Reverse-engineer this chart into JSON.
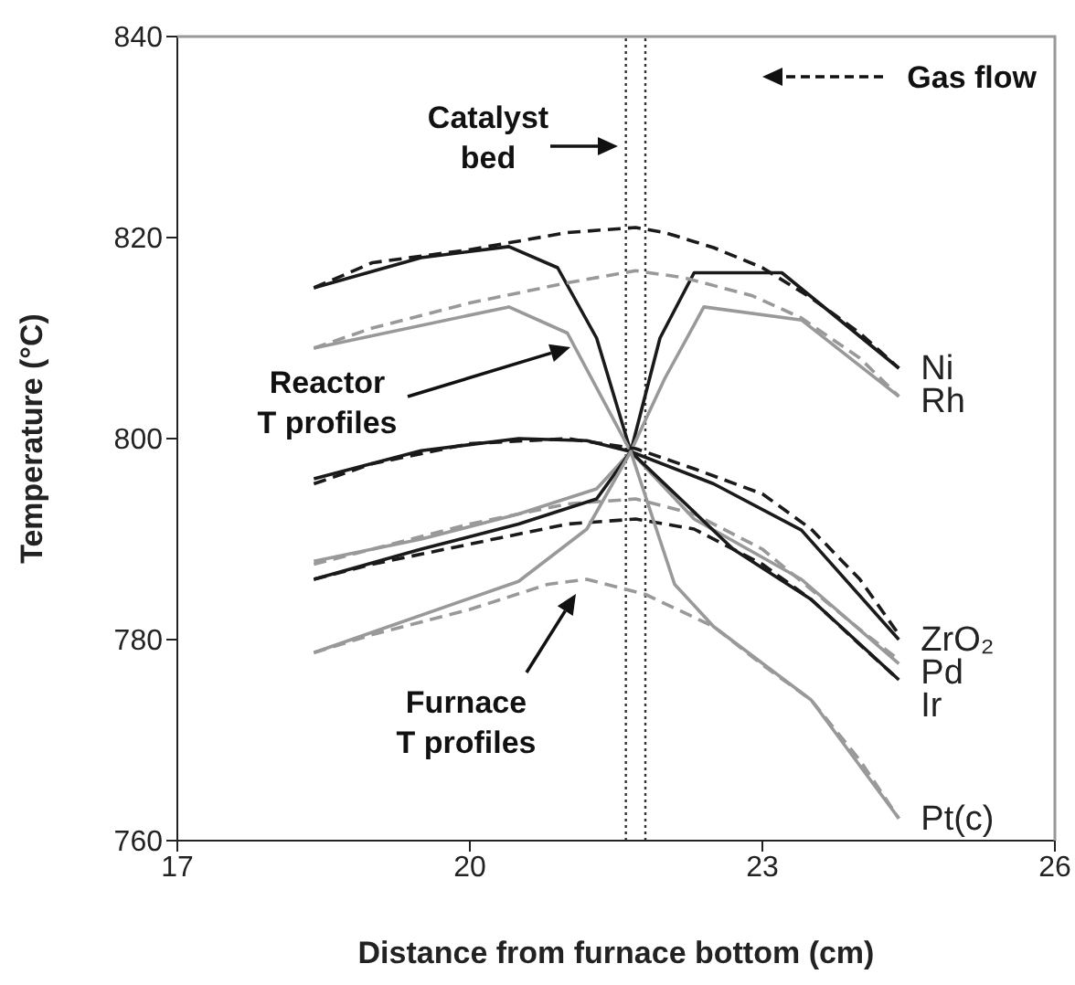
{
  "chart_data": {
    "type": "line",
    "xlabel": "Distance from furnace bottom (cm)",
    "ylabel": "Temperature (°C)",
    "xlim": [
      17,
      26
    ],
    "xticks": [
      17,
      20,
      23,
      26
    ],
    "ylim": [
      760,
      840
    ],
    "yticks": [
      760,
      780,
      800,
      820,
      840
    ],
    "series": [
      {
        "name": "Ni",
        "color": "#1a1a1a",
        "line_style": "solid",
        "x": [
          18.4,
          19.5,
          20.4,
          20.9,
          21.3,
          21.65,
          21.95,
          22.3,
          23.2,
          24.4
        ],
        "values": [
          815,
          818,
          819.1,
          817,
          810,
          798.7,
          810,
          816.5,
          816.5,
          807
        ]
      },
      {
        "color": "#1a1a1a",
        "line_style": "dashed",
        "x": [
          18.4,
          19,
          20,
          21,
          21.7,
          22,
          22.5,
          23,
          23.5,
          24,
          24.4
        ],
        "values": [
          815,
          817.5,
          818.8,
          820.5,
          821,
          820.5,
          819,
          817,
          814,
          810.5,
          807
        ]
      },
      {
        "name": "Rh",
        "color": "#999999",
        "line_style": "solid",
        "x": [
          18.4,
          20.4,
          21.0,
          21.65,
          22.0,
          22.4,
          23.4,
          24.4
        ],
        "values": [
          809,
          813.1,
          810.5,
          798.7,
          806,
          813.1,
          811.8,
          804.2
        ]
      },
      {
        "color": "#999999",
        "line_style": "dashed",
        "x": [
          18.4,
          19,
          20,
          21,
          21.7,
          22.2,
          22.9,
          23.4,
          24,
          24.4
        ],
        "values": [
          809,
          811,
          813.5,
          815.5,
          816.7,
          816,
          814.2,
          812,
          808,
          804.2
        ]
      },
      {
        "name": "ZrO₂",
        "color": "#1a1a1a",
        "line_style": "solid",
        "x": [
          18.4,
          19.5,
          20.5,
          21.2,
          21.65,
          22.5,
          23.4,
          24.4
        ],
        "values": [
          796,
          798.8,
          800,
          799.8,
          798.7,
          795.5,
          790.9,
          780
        ]
      },
      {
        "color": "#1a1a1a",
        "line_style": "dashed",
        "x": [
          18.4,
          19,
          20,
          21,
          21.7,
          22.3,
          23,
          23.5,
          24,
          24.4
        ],
        "values": [
          795.5,
          797.5,
          799.5,
          800,
          799,
          797,
          794.5,
          791,
          786,
          780.5
        ]
      },
      {
        "name": "Pd",
        "color": "#999999",
        "line_style": "solid",
        "x": [
          18.4,
          19.5,
          20.5,
          21.3,
          21.65,
          22.3,
          23.4,
          24.4
        ],
        "values": [
          787.8,
          790,
          792.5,
          795,
          798.7,
          792,
          786,
          777.6
        ]
      },
      {
        "color": "#999999",
        "line_style": "dashed",
        "x": [
          18.4,
          19,
          20,
          21,
          21.7,
          22.3,
          23,
          23.5,
          24,
          24.4
        ],
        "values": [
          787.5,
          789,
          791.5,
          793.5,
          794,
          792.5,
          789,
          785,
          781,
          778
        ]
      },
      {
        "name": "Ir",
        "color": "#1a1a1a",
        "line_style": "solid",
        "x": [
          18.4,
          19.5,
          20.5,
          21.3,
          21.65,
          22.7,
          23.5,
          24.4
        ],
        "values": [
          786,
          789,
          791.5,
          794,
          798.7,
          789,
          784,
          776
        ]
      },
      {
        "color": "#1a1a1a",
        "line_style": "dashed",
        "x": [
          18.4,
          19,
          20,
          21,
          21.7,
          22.3,
          23,
          23.5,
          24,
          24.4
        ],
        "values": [
          786,
          787.5,
          789.5,
          791.5,
          792,
          791,
          787.5,
          784,
          779.5,
          776
        ]
      },
      {
        "name": "Pt(c)",
        "color": "#999999",
        "line_style": "solid",
        "x": [
          18.4,
          20.5,
          21.2,
          21.65,
          22.1,
          22.5,
          23.5,
          24.4
        ],
        "values": [
          778.7,
          785.8,
          791,
          798.7,
          785.5,
          781.3,
          774,
          762.2
        ]
      },
      {
        "color": "#999999",
        "line_style": "dashed",
        "x": [
          18.4,
          19,
          20,
          20.8,
          21.2,
          21.8,
          22.5,
          23,
          23.5,
          24,
          24.4
        ],
        "values": [
          778.7,
          780.5,
          783,
          785.5,
          786,
          784.5,
          781.3,
          777.5,
          774,
          768,
          762.2
        ]
      }
    ],
    "ref_lines": [
      {
        "axis": "x",
        "value": 21.6,
        "color": "#333333",
        "line_style": "dotted"
      },
      {
        "axis": "x",
        "value": 21.8,
        "color": "#333333",
        "line_style": "dotted"
      }
    ],
    "annotations": [
      "Catalyst\nbed",
      "Reactor\nT profiles",
      "Furnace\nT profiles",
      "Gas flow"
    ]
  }
}
